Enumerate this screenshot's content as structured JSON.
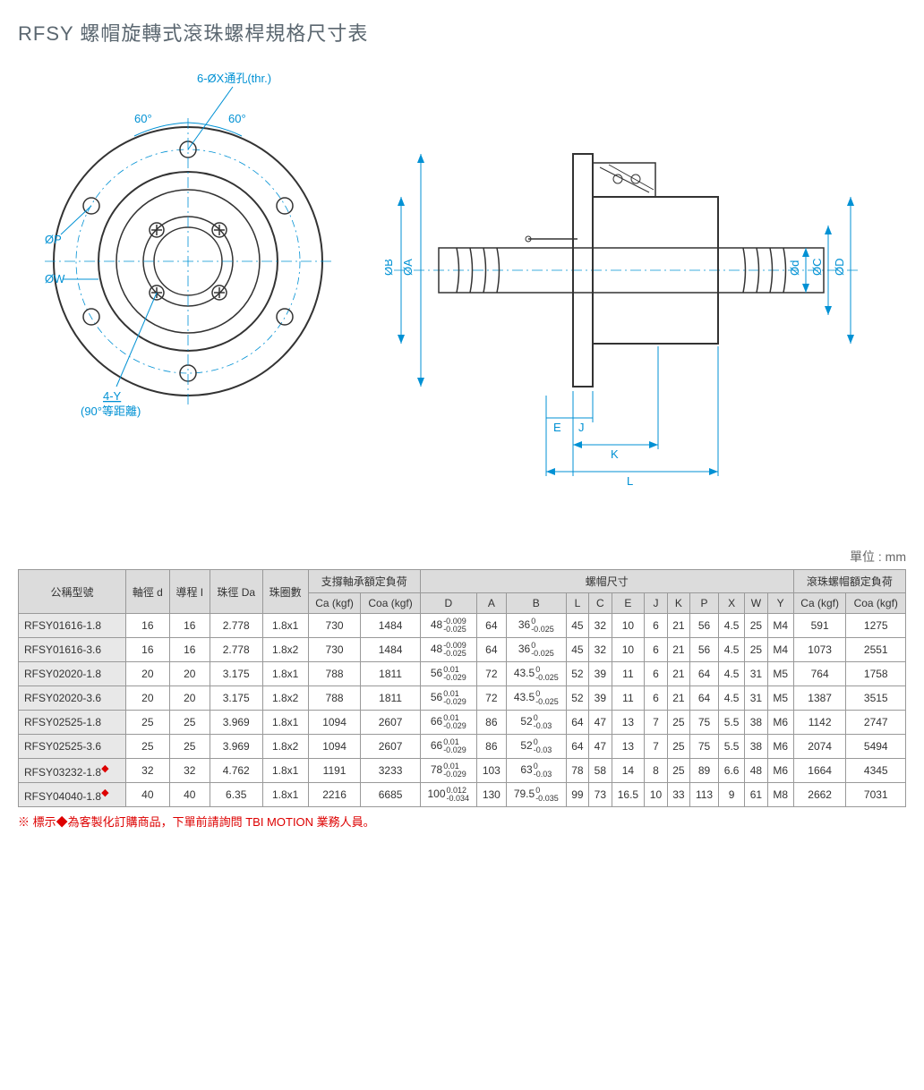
{
  "title": "RFSY 螺帽旋轉式滾珠螺桿規格尺寸表",
  "unit_label": "單位 : mm",
  "diagram": {
    "front": {
      "hole_label": "6-ØX通孔(thr.)",
      "angle_left": "60°",
      "angle_right": "60°",
      "dia_p": "ØP",
      "dia_w": "ØW",
      "bolt_label": "4-Y",
      "bolt_sub": "(90°等距離)"
    },
    "side": {
      "dia_a": "ØA",
      "dia_b_big": "ØB",
      "dia_d": "Ød",
      "dia_c": "ØC",
      "dia_d_big": "ØD",
      "dim_e": "E",
      "dim_j": "J",
      "dim_k": "K",
      "dim_l": "L"
    }
  },
  "table": {
    "headers": {
      "model": "公稱型號",
      "shaft_d": "軸徑 d",
      "lead_i": "導程 I",
      "ball_da": "珠徑 Da",
      "circuits": "珠圈數",
      "bearing_load": "支撐軸承額定負荷",
      "ca_kgf": "Ca (kgf)",
      "coa_kgf": "Coa (kgf)",
      "nut_dims": "螺帽尺寸",
      "nut_load": "滾珠螺帽額定負荷",
      "D": "D",
      "A": "A",
      "B": "B",
      "L": "L",
      "C": "C",
      "E": "E",
      "J": "J",
      "K": "K",
      "P": "P",
      "X": "X",
      "W": "W",
      "Y": "Y"
    },
    "rows": [
      {
        "model": "RFSY01616-1.8",
        "diamond": false,
        "d": "16",
        "i": "16",
        "da": "2.778",
        "circ": "1.8x1",
        "ca": "730",
        "coa": "1484",
        "D": "48",
        "Dt1": "-0.009",
        "Dt2": "-0.025",
        "A": "64",
        "B": "36",
        "Bt1": "0",
        "Bt2": "-0.025",
        "L": "45",
        "C": "32",
        "E": "10",
        "J": "6",
        "K": "21",
        "P": "56",
        "X": "4.5",
        "W": "25",
        "Y": "M4",
        "nca": "591",
        "ncoa": "1275"
      },
      {
        "model": "RFSY01616-3.6",
        "diamond": false,
        "d": "16",
        "i": "16",
        "da": "2.778",
        "circ": "1.8x2",
        "ca": "730",
        "coa": "1484",
        "D": "48",
        "Dt1": "-0.009",
        "Dt2": "-0.025",
        "A": "64",
        "B": "36",
        "Bt1": "0",
        "Bt2": "-0.025",
        "L": "45",
        "C": "32",
        "E": "10",
        "J": "6",
        "K": "21",
        "P": "56",
        "X": "4.5",
        "W": "25",
        "Y": "M4",
        "nca": "1073",
        "ncoa": "2551"
      },
      {
        "model": "RFSY02020-1.8",
        "diamond": false,
        "d": "20",
        "i": "20",
        "da": "3.175",
        "circ": "1.8x1",
        "ca": "788",
        "coa": "1811",
        "D": "56",
        "Dt1": "0.01",
        "Dt2": "-0.029",
        "A": "72",
        "B": "43.5",
        "Bt1": "0",
        "Bt2": "-0.025",
        "L": "52",
        "C": "39",
        "E": "11",
        "J": "6",
        "K": "21",
        "P": "64",
        "X": "4.5",
        "W": "31",
        "Y": "M5",
        "nca": "764",
        "ncoa": "1758"
      },
      {
        "model": "RFSY02020-3.6",
        "diamond": false,
        "d": "20",
        "i": "20",
        "da": "3.175",
        "circ": "1.8x2",
        "ca": "788",
        "coa": "1811",
        "D": "56",
        "Dt1": "0.01",
        "Dt2": "-0.029",
        "A": "72",
        "B": "43.5",
        "Bt1": "0",
        "Bt2": "-0.025",
        "L": "52",
        "C": "39",
        "E": "11",
        "J": "6",
        "K": "21",
        "P": "64",
        "X": "4.5",
        "W": "31",
        "Y": "M5",
        "nca": "1387",
        "ncoa": "3515"
      },
      {
        "model": "RFSY02525-1.8",
        "diamond": false,
        "d": "25",
        "i": "25",
        "da": "3.969",
        "circ": "1.8x1",
        "ca": "1094",
        "coa": "2607",
        "D": "66",
        "Dt1": "0.01",
        "Dt2": "-0.029",
        "A": "86",
        "B": "52",
        "Bt1": "0",
        "Bt2": "-0.03",
        "L": "64",
        "C": "47",
        "E": "13",
        "J": "7",
        "K": "25",
        "P": "75",
        "X": "5.5",
        "W": "38",
        "Y": "M6",
        "nca": "1142",
        "ncoa": "2747"
      },
      {
        "model": "RFSY02525-3.6",
        "diamond": false,
        "d": "25",
        "i": "25",
        "da": "3.969",
        "circ": "1.8x2",
        "ca": "1094",
        "coa": "2607",
        "D": "66",
        "Dt1": "0.01",
        "Dt2": "-0.029",
        "A": "86",
        "B": "52",
        "Bt1": "0",
        "Bt2": "-0.03",
        "L": "64",
        "C": "47",
        "E": "13",
        "J": "7",
        "K": "25",
        "P": "75",
        "X": "5.5",
        "W": "38",
        "Y": "M6",
        "nca": "2074",
        "ncoa": "5494"
      },
      {
        "model": "RFSY03232-1.8",
        "diamond": true,
        "d": "32",
        "i": "32",
        "da": "4.762",
        "circ": "1.8x1",
        "ca": "1191",
        "coa": "3233",
        "D": "78",
        "Dt1": "0.01",
        "Dt2": "-0.029",
        "A": "103",
        "B": "63",
        "Bt1": "0",
        "Bt2": "-0.03",
        "L": "78",
        "C": "58",
        "E": "14",
        "J": "8",
        "K": "25",
        "P": "89",
        "X": "6.6",
        "W": "48",
        "Y": "M6",
        "nca": "1664",
        "ncoa": "4345"
      },
      {
        "model": "RFSY04040-1.8",
        "diamond": true,
        "d": "40",
        "i": "40",
        "da": "6.35",
        "circ": "1.8x1",
        "ca": "2216",
        "coa": "6685",
        "D": "100",
        "Dt1": "0.012",
        "Dt2": "-0.034",
        "A": "130",
        "B": "79.5",
        "Bt1": "0",
        "Bt2": "-0.035",
        "L": "99",
        "C": "73",
        "E": "16.5",
        "J": "10",
        "K": "33",
        "P": "113",
        "X": "9",
        "W": "61",
        "Y": "M8",
        "nca": "2662",
        "ncoa": "7031"
      }
    ]
  },
  "footnote": "※ 標示◆為客製化訂購商品，下單前請詢問 TBI MOTION 業務人員。",
  "colors": {
    "dim": "#0091d4",
    "part": "#333333",
    "header_bg": "#dcdcdc",
    "model_bg": "#e8e8e8",
    "border": "#999999"
  }
}
